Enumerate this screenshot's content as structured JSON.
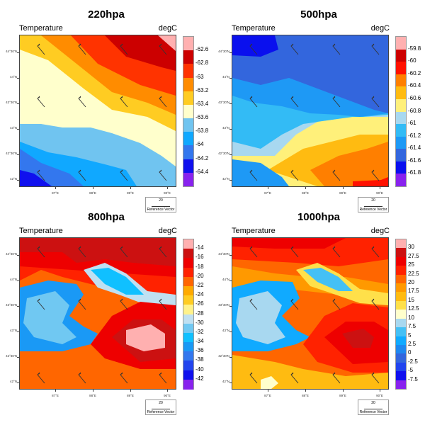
{
  "panels": [
    {
      "title": "220hpa",
      "left_label": "Temperature",
      "right_label": "degC",
      "levels": [
        "-62.6",
        "-62.8",
        "-63",
        "-63.2",
        "-63.4",
        "-63.6",
        "-63.8",
        "-64",
        "-64.2",
        "-64.4"
      ],
      "colors": [
        "#ffb0b0",
        "#cc0000",
        "#ff3300",
        "#ff8c00",
        "#ffcc22",
        "#ffffcc",
        "#70c4f0",
        "#10a8ff",
        "#3377ee",
        "#1010ee",
        "#8822ee"
      ]
    },
    {
      "title": "500hpa",
      "left_label": "Temperature",
      "right_label": "degC",
      "levels": [
        "-59.8",
        "-60",
        "-60.2",
        "-60.4",
        "-60.6",
        "-60.8",
        "-61",
        "-61.2",
        "-61.4",
        "-61.6",
        "-61.8"
      ],
      "colors": [
        "#ffb0b0",
        "#cc0000",
        "#ff1100",
        "#ff7f00",
        "#ffbb11",
        "#fff07a",
        "#a8d8f0",
        "#33bbf5",
        "#1e99f5",
        "#3366dd",
        "#0a10ee",
        "#8822ee"
      ]
    },
    {
      "title": "800hpa",
      "left_label": "Temperature",
      "right_label": "degC",
      "levels": [
        "-14",
        "-16",
        "-18",
        "-20",
        "-22",
        "-24",
        "-26",
        "-28",
        "-30",
        "-32",
        "-34",
        "-36",
        "-38",
        "-40",
        "-42"
      ],
      "colors": [
        "#ffb0b0",
        "#cc1111",
        "#ee0000",
        "#ff2200",
        "#ff6600",
        "#ffaa00",
        "#ffcc22",
        "#fff28a",
        "#bfe0f2",
        "#70c8f2",
        "#10c0ff",
        "#1a99f5",
        "#3377ee",
        "#2244ee",
        "#1010ee",
        "#8822ee"
      ]
    },
    {
      "title": "1000hpa",
      "left_label": "Temperature",
      "right_label": "degC",
      "levels": [
        "30",
        "27.5",
        "25",
        "22.5",
        "20",
        "17.5",
        "15",
        "12.5",
        "10",
        "7.5",
        "5",
        "2.5",
        "0",
        "-2.5",
        "-5",
        "-7.5"
      ],
      "colors": [
        "#ffb0b0",
        "#cc1111",
        "#ee0000",
        "#ff2200",
        "#ff6600",
        "#ff9900",
        "#ffbb11",
        "#ffe04a",
        "#ffffcc",
        "#a8d8f0",
        "#44c0f5",
        "#10aaff",
        "#1e88f0",
        "#3366dd",
        "#2244ee",
        "#1010ee",
        "#8822ee"
      ]
    }
  ],
  "lat_ticks": [
    "44°30'N",
    "44°N",
    "43°30'N",
    "43°N",
    "42°30'N",
    "42°N"
  ],
  "lon_ticks": [
    "87°E",
    "88°E",
    "89°E",
    "90°E"
  ],
  "reference_vector": {
    "magnitude": "20",
    "label": "Reference Vector"
  }
}
